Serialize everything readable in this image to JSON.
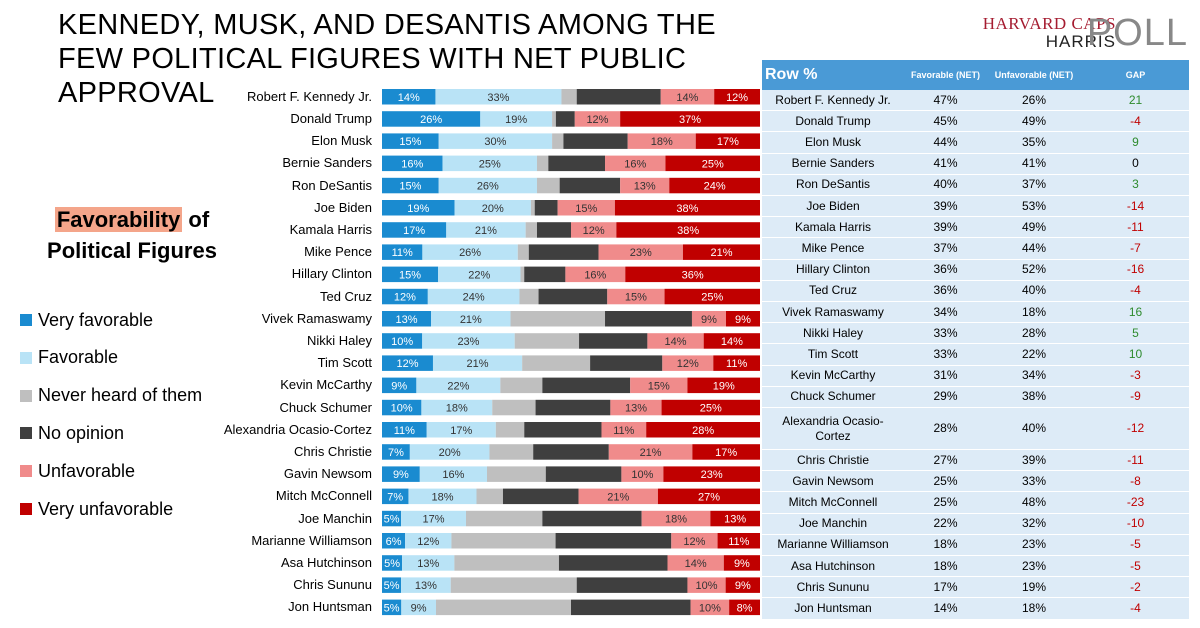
{
  "title": "KENNEDY, MUSK, AND DESANTIS AMONG THE FEW POLITICAL FIGURES WITH NET PUBLIC APPROVAL",
  "logo": {
    "line1": "HARVARD CAPS",
    "line2": "HARRIS",
    "line3": "POLL"
  },
  "side_title": {
    "highlight": "Favorability",
    "rest1": " of",
    "line2": "Political Figures"
  },
  "colors": {
    "very_favorable": "#1a8bd0",
    "favorable": "#b9e3f6",
    "never_heard": "#bfbfbf",
    "no_opinion": "#3f3f3f",
    "unfavorable": "#f08b8b",
    "very_unfavorable": "#c00000",
    "table_header": "#4a9ad6",
    "table_row": "#ddebf7",
    "gap_positive": "#2e8b2e",
    "gap_negative": "#c00000"
  },
  "legend": [
    {
      "key": "very_favorable",
      "label": "Very favorable"
    },
    {
      "key": "favorable",
      "label": "Favorable"
    },
    {
      "key": "never_heard",
      "label": "Never heard of them"
    },
    {
      "key": "no_opinion",
      "label": "No opinion"
    },
    {
      "key": "unfavorable",
      "label": "Unfavorable"
    },
    {
      "key": "very_unfavorable",
      "label": "Very unfavorable"
    }
  ],
  "chart_data": {
    "type": "bar",
    "orientation": "horizontal",
    "stacked": true,
    "unit": "%",
    "categories": [
      "Robert F. Kennedy Jr.",
      "Donald Trump",
      "Elon Musk",
      "Bernie Sanders",
      "Ron DeSantis",
      "Joe Biden",
      "Kamala Harris",
      "Mike Pence",
      "Hillary Clinton",
      "Ted Cruz",
      "Vivek Ramaswamy",
      "Nikki Haley",
      "Tim Scott",
      "Kevin McCarthy",
      "Chuck Schumer",
      "Alexandria Ocasio-Cortez",
      "Chris Christie",
      "Gavin Newsom",
      "Mitch McConnell",
      "Joe Manchin",
      "Marianne Williamson",
      "Asa Hutchinson",
      "Chris Sununu",
      "Jon Huntsman"
    ],
    "series": [
      {
        "name": "Very favorable",
        "values": [
          14,
          26,
          15,
          16,
          15,
          19,
          17,
          11,
          15,
          12,
          13,
          10,
          12,
          9,
          10,
          11,
          7,
          9,
          7,
          5,
          6,
          5,
          5,
          5
        ]
      },
      {
        "name": "Favorable",
        "values": [
          33,
          19,
          30,
          25,
          26,
          20,
          21,
          26,
          22,
          24,
          21,
          23,
          21,
          22,
          18,
          17,
          20,
          16,
          18,
          17,
          12,
          13,
          13,
          9
        ]
      },
      {
        "name": "Never heard of them",
        "values": [
          4,
          1,
          3,
          3,
          6,
          1,
          3,
          3,
          1,
          5,
          25,
          16,
          16,
          11,
          11,
          7,
          11,
          14,
          7,
          20,
          27,
          26,
          33,
          35
        ]
      },
      {
        "name": "No opinion",
        "values": [
          22,
          5,
          17,
          15,
          16,
          6,
          9,
          19,
          11,
          18,
          23,
          17,
          17,
          23,
          19,
          19,
          19,
          18,
          20,
          26,
          30,
          27,
          29,
          31
        ]
      },
      {
        "name": "Unfavorable",
        "values": [
          14,
          12,
          18,
          16,
          13,
          15,
          12,
          23,
          16,
          15,
          9,
          14,
          12,
          15,
          13,
          11,
          21,
          10,
          21,
          18,
          12,
          14,
          10,
          10
        ]
      },
      {
        "name": "Very unfavorable",
        "values": [
          12,
          37,
          17,
          25,
          24,
          38,
          38,
          21,
          36,
          25,
          9,
          14,
          11,
          19,
          25,
          28,
          17,
          23,
          27,
          13,
          11,
          9,
          9,
          8
        ]
      }
    ],
    "xlim": [
      0,
      100
    ],
    "legend_position": "left"
  },
  "table": {
    "headers": {
      "row": "Row %",
      "fav": "Favorable (NET)",
      "unf": "Unfavorable (NET)",
      "gap": "GAP"
    },
    "rows": [
      {
        "name": "Robert F. Kennedy Jr.",
        "fav": "47%",
        "unf": "26%",
        "gap": "21"
      },
      {
        "name": "Donald Trump",
        "fav": "45%",
        "unf": "49%",
        "gap": "-4"
      },
      {
        "name": "Elon Musk",
        "fav": "44%",
        "unf": "35%",
        "gap": "9"
      },
      {
        "name": "Bernie Sanders",
        "fav": "41%",
        "unf": "41%",
        "gap": "0"
      },
      {
        "name": "Ron DeSantis",
        "fav": "40%",
        "unf": "37%",
        "gap": "3"
      },
      {
        "name": "Joe Biden",
        "fav": "39%",
        "unf": "53%",
        "gap": "-14"
      },
      {
        "name": "Kamala Harris",
        "fav": "39%",
        "unf": "49%",
        "gap": "-11"
      },
      {
        "name": "Mike Pence",
        "fav": "37%",
        "unf": "44%",
        "gap": "-7"
      },
      {
        "name": "Hillary Clinton",
        "fav": "36%",
        "unf": "52%",
        "gap": "-16"
      },
      {
        "name": "Ted Cruz",
        "fav": "36%",
        "unf": "40%",
        "gap": "-4"
      },
      {
        "name": "Vivek Ramaswamy",
        "fav": "34%",
        "unf": "18%",
        "gap": "16"
      },
      {
        "name": "Nikki Haley",
        "fav": "33%",
        "unf": "28%",
        "gap": "5"
      },
      {
        "name": "Tim Scott",
        "fav": "33%",
        "unf": "22%",
        "gap": "10"
      },
      {
        "name": "Kevin McCarthy",
        "fav": "31%",
        "unf": "34%",
        "gap": "-3"
      },
      {
        "name": "Chuck Schumer",
        "fav": "29%",
        "unf": "38%",
        "gap": "-9"
      },
      {
        "name": "Alexandria Ocasio-Cortez",
        "fav": "28%",
        "unf": "40%",
        "gap": "-12"
      },
      {
        "name": "Chris Christie",
        "fav": "27%",
        "unf": "39%",
        "gap": "-11"
      },
      {
        "name": "Gavin Newsom",
        "fav": "25%",
        "unf": "33%",
        "gap": "-8"
      },
      {
        "name": "Mitch McConnell",
        "fav": "25%",
        "unf": "48%",
        "gap": "-23"
      },
      {
        "name": "Joe Manchin",
        "fav": "22%",
        "unf": "32%",
        "gap": "-10"
      },
      {
        "name": "Marianne Williamson",
        "fav": "18%",
        "unf": "23%",
        "gap": "-5"
      },
      {
        "name": "Asa Hutchinson",
        "fav": "18%",
        "unf": "23%",
        "gap": "-5"
      },
      {
        "name": "Chris Sununu",
        "fav": "17%",
        "unf": "19%",
        "gap": "-2"
      },
      {
        "name": "Jon Huntsman",
        "fav": "14%",
        "unf": "18%",
        "gap": "-4"
      }
    ]
  }
}
